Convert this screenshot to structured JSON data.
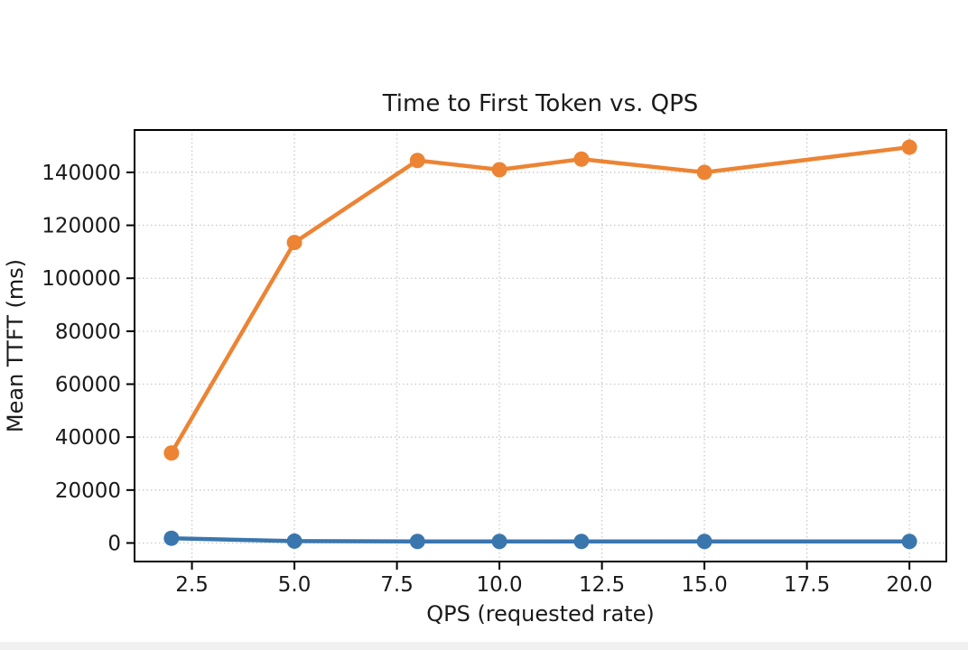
{
  "page": {
    "background_color": "#ffffff",
    "bottom_strip_color": "#f0f0f1"
  },
  "chart_data": {
    "type": "line",
    "title": "Time to First Token vs. QPS",
    "xlabel": "QPS (requested rate)",
    "ylabel": "Mean TTFT (ms)",
    "x": [
      2,
      5,
      8,
      10,
      12,
      15,
      20
    ],
    "series": [
      {
        "name": "blue-series",
        "color": "#3a76ae",
        "values": [
          1800,
          700,
          600,
          600,
          600,
          600,
          600
        ]
      },
      {
        "name": "orange-series",
        "color": "#ec8434",
        "values": [
          34000,
          113500,
          144500,
          141000,
          145000,
          140000,
          149500
        ]
      }
    ],
    "xlim": [
      1.1,
      20.9
    ],
    "ylim": [
      -7000,
      156000
    ],
    "xticks": {
      "values": [
        2.5,
        5,
        7.5,
        10,
        12.5,
        15,
        17.5,
        20
      ],
      "labels": [
        "2.5",
        "5.0",
        "7.5",
        "10.0",
        "12.5",
        "15.0",
        "17.5",
        "20.0"
      ]
    },
    "yticks": {
      "values": [
        0,
        20000,
        40000,
        60000,
        80000,
        100000,
        120000,
        140000
      ],
      "labels": [
        "0",
        "20000",
        "40000",
        "60000",
        "80000",
        "100000",
        "120000",
        "140000"
      ]
    },
    "grid": true,
    "grid_style": "dotted",
    "grid_color": "#c9c9c9",
    "axis_color": "#000000",
    "text_color": "#1a1a1a",
    "legend": "none"
  }
}
